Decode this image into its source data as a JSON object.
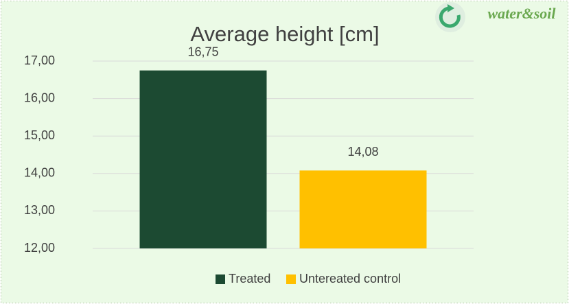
{
  "chart_data": {
    "type": "bar",
    "title": "Average height [cm]",
    "annotation": "water&soil",
    "categories": [
      null
    ],
    "series": [
      {
        "name": "Treated",
        "color": "#1c4a32",
        "values": [
          16.75
        ],
        "value_labels": [
          "16,75"
        ]
      },
      {
        "name": "Untereated control",
        "color": "#ffc000",
        "values": [
          14.08
        ],
        "value_labels": [
          "14,08"
        ]
      }
    ],
    "ylim": [
      12,
      17
    ],
    "yticks": [
      {
        "value": 12,
        "label": "12,00"
      },
      {
        "value": 13,
        "label": "13,00"
      },
      {
        "value": 14,
        "label": "14,00"
      },
      {
        "value": 15,
        "label": "15,00"
      },
      {
        "value": 16,
        "label": "16,00"
      },
      {
        "value": 17,
        "label": "17,00"
      }
    ],
    "grid": true,
    "legend": "bottom"
  }
}
